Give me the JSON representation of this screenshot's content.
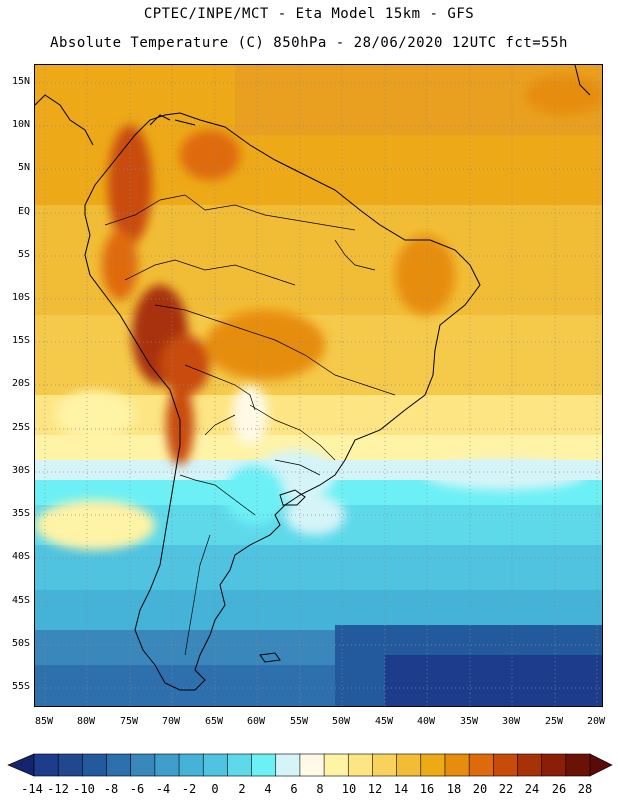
{
  "title_line1": "CPTEC/INPE/MCT  -  Eta Model 15km  - GFS",
  "title_line2": "Absolute Temperature (C) 850hPa - 28/06/2020 12UTC fct=55h",
  "lat_labels": [
    "15N",
    "10N",
    "5N",
    "EQ",
    "5S",
    "10S",
    "15S",
    "20S",
    "25S",
    "30S",
    "35S",
    "40S",
    "45S",
    "50S",
    "55S"
  ],
  "lon_labels": [
    "85W",
    "80W",
    "75W",
    "70W",
    "65W",
    "60W",
    "55W",
    "50W",
    "45W",
    "40W",
    "35W",
    "30W",
    "25W",
    "20W"
  ],
  "map_extent": {
    "lon": [
      -86,
      -19
    ],
    "lat": [
      -58,
      16
    ]
  },
  "colorbar": {
    "labels": [
      "-14",
      "-12",
      "-10",
      "-8",
      "-6",
      "-4",
      "-2",
      "0",
      "2",
      "4",
      "6",
      "8",
      "10",
      "12",
      "14",
      "16",
      "18",
      "20",
      "22",
      "24",
      "26",
      "28"
    ],
    "colors": [
      "#1e3c8c",
      "#21478f",
      "#235a9e",
      "#2e6fae",
      "#3a87bc",
      "#3f9ecb",
      "#45b2d8",
      "#4fc3e0",
      "#5ed9ea",
      "#6cf0f5",
      "#d4f4f8",
      "#fff9e6",
      "#fff3a6",
      "#fde584",
      "#f8d25a",
      "#f2bd36",
      "#ecaa16",
      "#e78d0e",
      "#df6a0a",
      "#c94b0a",
      "#a83208",
      "#8b1e06",
      "#6b1206"
    ]
  }
}
